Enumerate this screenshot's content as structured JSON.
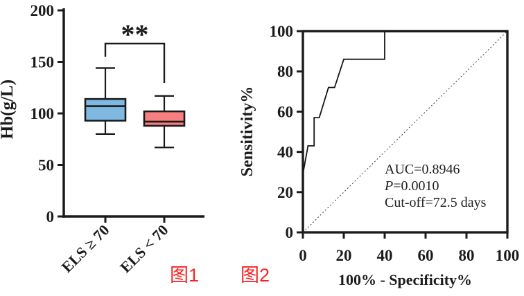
{
  "figure_labels": [
    {
      "text": "图1",
      "color": "#FA2222"
    },
    {
      "text": "图2",
      "color": "#FA2222"
    }
  ],
  "chart_data": [
    {
      "type": "box",
      "title": "",
      "ylabel": "Hb(g/L)",
      "xlabel": "",
      "ylim": [
        0,
        200
      ],
      "yticks": [
        0,
        50,
        100,
        150,
        200
      ],
      "categories": [
        "ELS ≥ 70",
        "ELS < 70"
      ],
      "series": [
        {
          "name": "ELS ≥ 70",
          "min": 80,
          "q1": 93,
          "median": 107,
          "q3": 114,
          "max": 144,
          "fill_color": "#7FB9E2"
        },
        {
          "name": "ELS < 70",
          "min": 67,
          "q1": 88,
          "median": 92,
          "q3": 102,
          "max": 117,
          "fill_color": "#F77F7F"
        }
      ],
      "significance": {
        "label": "**",
        "between": [
          "ELS ≥ 70",
          "ELS < 70"
        ]
      },
      "grid": false,
      "legend": false
    },
    {
      "type": "line",
      "title": "",
      "xlabel": "100% - Specificity%",
      "ylabel": "Sensitivity%",
      "xlim": [
        0,
        100
      ],
      "ylim": [
        0,
        100
      ],
      "xticks": [
        0,
        20,
        40,
        60,
        80,
        100
      ],
      "yticks": [
        0,
        20,
        40,
        60,
        80,
        100
      ],
      "series": [
        {
          "name": "ROC curve",
          "color": "#161616",
          "points": [
            [
              0,
              0
            ],
            [
              0,
              29
            ],
            [
              2.5,
              43
            ],
            [
              5.5,
              43
            ],
            [
              5.5,
              57
            ],
            [
              8,
              57
            ],
            [
              12.5,
              72
            ],
            [
              15.5,
              72
            ],
            [
              20,
              86
            ],
            [
              40,
              86
            ],
            [
              40,
              100
            ],
            [
              100,
              100
            ]
          ]
        }
      ],
      "reference_line": {
        "type": "diagonal",
        "style": "dotted",
        "from": [
          0,
          0
        ],
        "to": [
          100,
          100
        ]
      },
      "annotations": [
        {
          "text": "AUC=0.8946"
        },
        {
          "text": "P=0.0010",
          "italic_first_char": true
        },
        {
          "text": "Cut-off=72.5 days"
        }
      ],
      "grid": false,
      "legend": false,
      "frame": true
    }
  ]
}
